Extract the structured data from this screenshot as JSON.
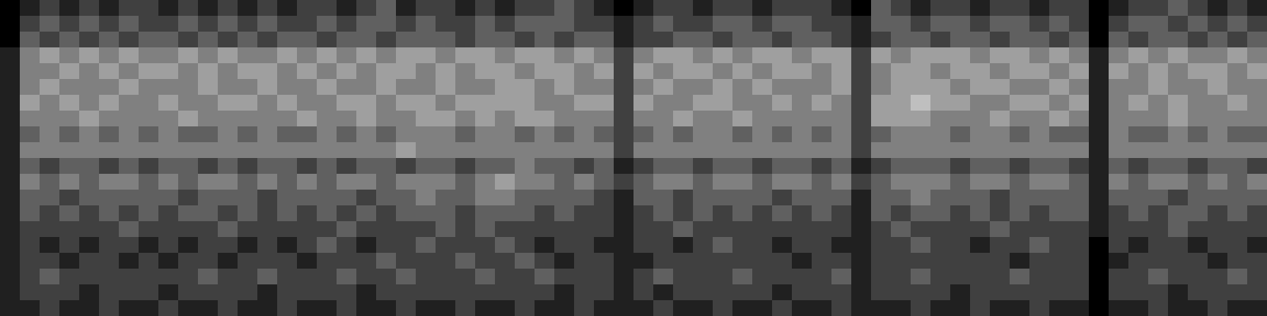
{
  "chart_data": {
    "type": "heatmap",
    "tick_labels": false,
    "zlim": [
      0,
      8
    ],
    "cells": [
      [
        0,
        1,
        2,
        1,
        2,
        1,
        2,
        2,
        1,
        2,
        1,
        2,
        1,
        2,
        1,
        2,
        2,
        1,
        2,
        3,
        1,
        2,
        2,
        1,
        2,
        1,
        2,
        2,
        3,
        2,
        1,
        0,
        1,
        2,
        2,
        1,
        2,
        2,
        1,
        2,
        2,
        2,
        1,
        0,
        3,
        2,
        1,
        2,
        2,
        1,
        2,
        2,
        1,
        2,
        2,
        0,
        1,
        2,
        2,
        3,
        2,
        1,
        2,
        1
      ],
      [
        0,
        2,
        3,
        2,
        3,
        2,
        3,
        2,
        2,
        3,
        2,
        3,
        2,
        3,
        2,
        2,
        3,
        2,
        3,
        3,
        2,
        3,
        2,
        2,
        3,
        2,
        3,
        3,
        3,
        2,
        2,
        1,
        2,
        3,
        2,
        2,
        3,
        3,
        2,
        3,
        3,
        2,
        2,
        1,
        3,
        3,
        2,
        3,
        3,
        2,
        3,
        3,
        2,
        3,
        2,
        0,
        2,
        3,
        3,
        2,
        3,
        2,
        3,
        2
      ],
      [
        0,
        3,
        2,
        3,
        2,
        3,
        2,
        3,
        3,
        2,
        3,
        2,
        3,
        2,
        3,
        3,
        2,
        3,
        3,
        2,
        3,
        3,
        3,
        2,
        3,
        3,
        2,
        3,
        2,
        3,
        3,
        1,
        2,
        2,
        3,
        3,
        2,
        3,
        3,
        2,
        3,
        3,
        2,
        1,
        2,
        3,
        3,
        2,
        3,
        3,
        2,
        3,
        3,
        2,
        3,
        0,
        3,
        2,
        3,
        3,
        2,
        3,
        2,
        3
      ],
      [
        1,
        4,
        5,
        4,
        5,
        4,
        5,
        4,
        4,
        5,
        4,
        5,
        4,
        4,
        5,
        4,
        5,
        4,
        5,
        4,
        5,
        5,
        4,
        5,
        5,
        4,
        5,
        5,
        4,
        5,
        4,
        2,
        4,
        5,
        5,
        4,
        5,
        4,
        5,
        5,
        4,
        5,
        5,
        2,
        5,
        4,
        5,
        5,
        5,
        4,
        5,
        5,
        4,
        5,
        4,
        1,
        4,
        5,
        4,
        5,
        4,
        4,
        5,
        4
      ],
      [
        1,
        4,
        4,
        5,
        4,
        5,
        4,
        5,
        5,
        4,
        5,
        4,
        5,
        5,
        4,
        5,
        4,
        5,
        4,
        5,
        5,
        4,
        5,
        4,
        5,
        5,
        4,
        5,
        5,
        4,
        5,
        2,
        5,
        4,
        5,
        5,
        4,
        5,
        4,
        5,
        5,
        4,
        5,
        2,
        4,
        5,
        5,
        4,
        5,
        5,
        4,
        5,
        5,
        4,
        5,
        1,
        5,
        4,
        5,
        4,
        5,
        5,
        4,
        5
      ],
      [
        1,
        4,
        5,
        4,
        4,
        4,
        5,
        4,
        4,
        4,
        5,
        4,
        4,
        5,
        4,
        4,
        5,
        4,
        4,
        5,
        4,
        4,
        5,
        4,
        4,
        5,
        5,
        4,
        5,
        4,
        4,
        2,
        4,
        5,
        4,
        4,
        5,
        4,
        5,
        4,
        4,
        4,
        5,
        2,
        4,
        5,
        5,
        5,
        4,
        5,
        5,
        4,
        4,
        5,
        4,
        1,
        4,
        4,
        5,
        4,
        4,
        5,
        4,
        4
      ],
      [
        1,
        5,
        4,
        5,
        4,
        5,
        4,
        4,
        5,
        4,
        4,
        5,
        5,
        4,
        5,
        4,
        4,
        5,
        5,
        4,
        5,
        5,
        4,
        5,
        5,
        5,
        5,
        4,
        4,
        5,
        5,
        2,
        5,
        4,
        4,
        5,
        5,
        4,
        4,
        5,
        4,
        5,
        4,
        2,
        5,
        5,
        6,
        5,
        5,
        4,
        4,
        5,
        5,
        4,
        5,
        1,
        4,
        5,
        4,
        5,
        4,
        4,
        5,
        4
      ],
      [
        1,
        4,
        4,
        4,
        5,
        4,
        4,
        4,
        4,
        5,
        4,
        4,
        4,
        4,
        4,
        5,
        4,
        4,
        5,
        4,
        4,
        5,
        5,
        4,
        5,
        4,
        5,
        5,
        4,
        4,
        4,
        2,
        4,
        4,
        5,
        4,
        4,
        5,
        4,
        4,
        4,
        4,
        4,
        2,
        5,
        5,
        5,
        4,
        4,
        4,
        5,
        4,
        4,
        5,
        4,
        1,
        4,
        4,
        4,
        5,
        4,
        4,
        4,
        4
      ],
      [
        1,
        3,
        4,
        3,
        4,
        3,
        4,
        3,
        4,
        3,
        3,
        4,
        3,
        4,
        3,
        3,
        4,
        3,
        4,
        3,
        4,
        4,
        4,
        3,
        4,
        4,
        3,
        4,
        3,
        4,
        3,
        2,
        3,
        4,
        3,
        4,
        4,
        3,
        4,
        3,
        4,
        3,
        4,
        2,
        3,
        4,
        4,
        4,
        3,
        4,
        4,
        3,
        4,
        3,
        3,
        1,
        4,
        3,
        3,
        4,
        3,
        4,
        3,
        3
      ],
      [
        1,
        4,
        4,
        4,
        4,
        4,
        4,
        4,
        4,
        4,
        4,
        4,
        4,
        4,
        4,
        4,
        4,
        4,
        4,
        4,
        5,
        4,
        4,
        4,
        4,
        4,
        4,
        4,
        4,
        4,
        4,
        2,
        4,
        4,
        4,
        4,
        4,
        4,
        4,
        4,
        4,
        4,
        4,
        2,
        4,
        4,
        4,
        4,
        4,
        4,
        4,
        4,
        4,
        4,
        4,
        1,
        4,
        4,
        4,
        4,
        4,
        4,
        4,
        4
      ],
      [
        1,
        3,
        2,
        3,
        3,
        2,
        3,
        2,
        3,
        3,
        2,
        3,
        2,
        3,
        3,
        2,
        3,
        2,
        3,
        3,
        2,
        3,
        3,
        2,
        3,
        3,
        4,
        3,
        3,
        2,
        3,
        1,
        2,
        3,
        3,
        2,
        3,
        3,
        2,
        3,
        3,
        2,
        3,
        1,
        2,
        3,
        3,
        3,
        2,
        3,
        3,
        2,
        3,
        3,
        2,
        1,
        3,
        2,
        3,
        3,
        2,
        3,
        3,
        2
      ],
      [
        1,
        4,
        3,
        4,
        3,
        4,
        4,
        3,
        4,
        3,
        4,
        4,
        3,
        4,
        3,
        4,
        3,
        4,
        4,
        3,
        4,
        4,
        4,
        3,
        4,
        5,
        4,
        4,
        3,
        4,
        3,
        2,
        3,
        4,
        4,
        3,
        4,
        4,
        3,
        4,
        4,
        3,
        4,
        2,
        3,
        4,
        4,
        4,
        3,
        4,
        4,
        3,
        4,
        4,
        3,
        1,
        4,
        3,
        4,
        4,
        3,
        4,
        3,
        4
      ],
      [
        1,
        3,
        3,
        2,
        3,
        3,
        3,
        3,
        3,
        2,
        3,
        3,
        3,
        2,
        3,
        3,
        3,
        3,
        2,
        3,
        3,
        4,
        3,
        3,
        4,
        4,
        3,
        3,
        3,
        3,
        2,
        1,
        3,
        3,
        2,
        3,
        3,
        3,
        3,
        2,
        3,
        3,
        3,
        1,
        3,
        3,
        4,
        3,
        3,
        3,
        2,
        3,
        3,
        3,
        3,
        1,
        3,
        3,
        3,
        2,
        3,
        3,
        3,
        3
      ],
      [
        1,
        3,
        2,
        3,
        2,
        3,
        2,
        3,
        2,
        3,
        3,
        2,
        3,
        2,
        3,
        2,
        3,
        2,
        3,
        2,
        3,
        3,
        3,
        2,
        3,
        3,
        3,
        2,
        3,
        2,
        2,
        1,
        2,
        3,
        2,
        3,
        2,
        3,
        2,
        3,
        2,
        3,
        2,
        1,
        3,
        2,
        3,
        3,
        2,
        3,
        2,
        3,
        2,
        3,
        3,
        1,
        2,
        3,
        2,
        3,
        3,
        2,
        3,
        2
      ],
      [
        1,
        2,
        2,
        2,
        2,
        2,
        3,
        2,
        2,
        2,
        2,
        3,
        2,
        2,
        2,
        2,
        2,
        3,
        2,
        2,
        2,
        2,
        3,
        2,
        3,
        2,
        2,
        2,
        2,
        2,
        2,
        1,
        2,
        2,
        3,
        2,
        2,
        2,
        2,
        2,
        2,
        2,
        2,
        1,
        2,
        3,
        2,
        2,
        2,
        2,
        3,
        2,
        2,
        2,
        2,
        1,
        2,
        2,
        2,
        3,
        2,
        2,
        2,
        2
      ],
      [
        1,
        2,
        1,
        2,
        1,
        2,
        2,
        1,
        2,
        1,
        2,
        2,
        1,
        2,
        1,
        2,
        3,
        2,
        1,
        2,
        2,
        3,
        2,
        2,
        2,
        3,
        2,
        1,
        2,
        2,
        1,
        1,
        2,
        2,
        1,
        2,
        3,
        2,
        2,
        1,
        2,
        2,
        1,
        1,
        2,
        2,
        3,
        2,
        2,
        1,
        2,
        2,
        3,
        2,
        2,
        0,
        2,
        1,
        2,
        2,
        1,
        2,
        2,
        1
      ],
      [
        1,
        2,
        2,
        1,
        2,
        2,
        1,
        2,
        1,
        2,
        2,
        1,
        2,
        2,
        2,
        1,
        2,
        2,
        2,
        3,
        2,
        2,
        2,
        3,
        2,
        2,
        3,
        2,
        1,
        2,
        2,
        1,
        1,
        2,
        2,
        2,
        2,
        2,
        2,
        2,
        1,
        2,
        2,
        1,
        2,
        2,
        2,
        2,
        2,
        2,
        2,
        1,
        2,
        2,
        2,
        0,
        1,
        2,
        2,
        2,
        2,
        1,
        2,
        2
      ],
      [
        1,
        2,
        3,
        2,
        2,
        2,
        2,
        2,
        2,
        2,
        3,
        2,
        2,
        3,
        2,
        2,
        2,
        3,
        2,
        2,
        3,
        2,
        2,
        2,
        3,
        2,
        2,
        3,
        2,
        2,
        2,
        1,
        2,
        3,
        2,
        2,
        2,
        3,
        2,
        2,
        2,
        2,
        3,
        1,
        2,
        2,
        3,
        2,
        2,
        2,
        2,
        3,
        2,
        2,
        2,
        0,
        2,
        2,
        3,
        2,
        2,
        2,
        3,
        2
      ],
      [
        1,
        2,
        2,
        2,
        1,
        2,
        2,
        2,
        1,
        2,
        2,
        2,
        2,
        1,
        2,
        2,
        2,
        2,
        1,
        2,
        2,
        2,
        2,
        2,
        2,
        2,
        2,
        2,
        1,
        2,
        2,
        1,
        2,
        1,
        2,
        2,
        2,
        2,
        2,
        1,
        2,
        2,
        2,
        1,
        2,
        2,
        2,
        2,
        1,
        2,
        2,
        2,
        2,
        2,
        2,
        0,
        2,
        2,
        2,
        1,
        2,
        2,
        2,
        2
      ],
      [
        1,
        1,
        2,
        1,
        1,
        2,
        1,
        1,
        2,
        1,
        1,
        2,
        1,
        1,
        2,
        1,
        1,
        2,
        1,
        1,
        2,
        1,
        1,
        2,
        1,
        1,
        2,
        1,
        1,
        2,
        1,
        1,
        1,
        2,
        1,
        1,
        2,
        1,
        1,
        2,
        1,
        1,
        2,
        1,
        1,
        1,
        2,
        1,
        1,
        2,
        1,
        1,
        2,
        1,
        1,
        0,
        1,
        1,
        2,
        1,
        1,
        2,
        1,
        1
      ]
    ]
  }
}
